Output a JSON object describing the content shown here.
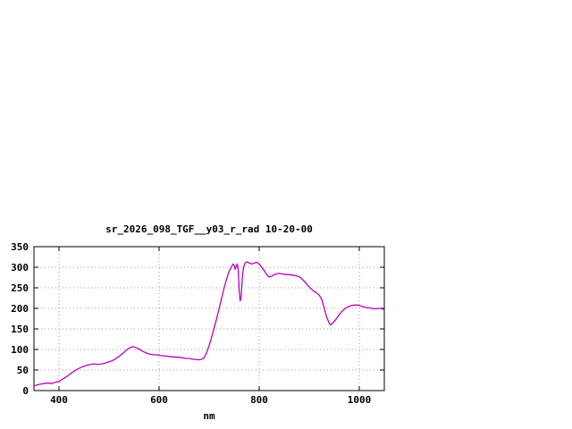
{
  "chart_data": {
    "type": "line",
    "title": "sr_2026_098_TGF__y03_r_rad 10-20-00",
    "xlabel": "nm",
    "ylabel": "",
    "xlim": [
      350,
      1050
    ],
    "ylim": [
      0,
      350
    ],
    "xticks": [
      400,
      600,
      800,
      1000
    ],
    "yticks": [
      0,
      50,
      100,
      150,
      200,
      250,
      300,
      350
    ],
    "grid": true,
    "legend": "none",
    "line_color": "#bb00bb",
    "points": [
      [
        350,
        12
      ],
      [
        355,
        13
      ],
      [
        360,
        15
      ],
      [
        365,
        16
      ],
      [
        370,
        17
      ],
      [
        375,
        18
      ],
      [
        380,
        18
      ],
      [
        385,
        17
      ],
      [
        390,
        19
      ],
      [
        395,
        21
      ],
      [
        400,
        22
      ],
      [
        405,
        26
      ],
      [
        410,
        30
      ],
      [
        415,
        34
      ],
      [
        420,
        38
      ],
      [
        425,
        43
      ],
      [
        430,
        47
      ],
      [
        435,
        51
      ],
      [
        440,
        54
      ],
      [
        445,
        57
      ],
      [
        450,
        59
      ],
      [
        455,
        61
      ],
      [
        460,
        63
      ],
      [
        465,
        64
      ],
      [
        470,
        65
      ],
      [
        475,
        64
      ],
      [
        480,
        64
      ],
      [
        485,
        65
      ],
      [
        490,
        66
      ],
      [
        495,
        68
      ],
      [
        500,
        70
      ],
      [
        505,
        72
      ],
      [
        510,
        75
      ],
      [
        515,
        79
      ],
      [
        520,
        83
      ],
      [
        525,
        88
      ],
      [
        530,
        93
      ],
      [
        535,
        99
      ],
      [
        540,
        103
      ],
      [
        545,
        106
      ],
      [
        550,
        106
      ],
      [
        555,
        104
      ],
      [
        560,
        101
      ],
      [
        565,
        97
      ],
      [
        570,
        94
      ],
      [
        575,
        91
      ],
      [
        580,
        89
      ],
      [
        585,
        88
      ],
      [
        590,
        87
      ],
      [
        595,
        87
      ],
      [
        600,
        86
      ],
      [
        605,
        85
      ],
      [
        610,
        84
      ],
      [
        615,
        84
      ],
      [
        620,
        83
      ],
      [
        625,
        82
      ],
      [
        630,
        82
      ],
      [
        635,
        81
      ],
      [
        640,
        81
      ],
      [
        645,
        80
      ],
      [
        650,
        79
      ],
      [
        655,
        78
      ],
      [
        660,
        78
      ],
      [
        665,
        77
      ],
      [
        670,
        76
      ],
      [
        675,
        75
      ],
      [
        680,
        75
      ],
      [
        685,
        76
      ],
      [
        690,
        80
      ],
      [
        695,
        92
      ],
      [
        700,
        110
      ],
      [
        705,
        130
      ],
      [
        710,
        152
      ],
      [
        715,
        175
      ],
      [
        720,
        200
      ],
      [
        725,
        225
      ],
      [
        730,
        250
      ],
      [
        735,
        272
      ],
      [
        740,
        290
      ],
      [
        745,
        302
      ],
      [
        748,
        308
      ],
      [
        750,
        305
      ],
      [
        752,
        295
      ],
      [
        754,
        300
      ],
      [
        756,
        308
      ],
      [
        758,
        295
      ],
      [
        760,
        245
      ],
      [
        762,
        218
      ],
      [
        764,
        225
      ],
      [
        766,
        270
      ],
      [
        768,
        295
      ],
      [
        770,
        305
      ],
      [
        772,
        310
      ],
      [
        774,
        312
      ],
      [
        776,
        313
      ],
      [
        778,
        312
      ],
      [
        780,
        310
      ],
      [
        785,
        308
      ],
      [
        790,
        310
      ],
      [
        795,
        312
      ],
      [
        800,
        308
      ],
      [
        805,
        300
      ],
      [
        810,
        292
      ],
      [
        815,
        282
      ],
      [
        820,
        276
      ],
      [
        825,
        278
      ],
      [
        830,
        282
      ],
      [
        835,
        284
      ],
      [
        840,
        285
      ],
      [
        845,
        284
      ],
      [
        850,
        283
      ],
      [
        855,
        282
      ],
      [
        860,
        282
      ],
      [
        865,
        281
      ],
      [
        870,
        280
      ],
      [
        875,
        279
      ],
      [
        880,
        277
      ],
      [
        885,
        272
      ],
      [
        890,
        266
      ],
      [
        895,
        259
      ],
      [
        900,
        252
      ],
      [
        905,
        246
      ],
      [
        910,
        241
      ],
      [
        915,
        237
      ],
      [
        920,
        232
      ],
      [
        925,
        222
      ],
      [
        930,
        200
      ],
      [
        935,
        178
      ],
      [
        940,
        164
      ],
      [
        942,
        160
      ],
      [
        945,
        162
      ],
      [
        950,
        168
      ],
      [
        955,
        176
      ],
      [
        960,
        185
      ],
      [
        965,
        192
      ],
      [
        970,
        198
      ],
      [
        975,
        202
      ],
      [
        980,
        205
      ],
      [
        985,
        207
      ],
      [
        990,
        208
      ],
      [
        995,
        208
      ],
      [
        1000,
        207
      ],
      [
        1005,
        205
      ],
      [
        1010,
        203
      ],
      [
        1015,
        202
      ],
      [
        1020,
        201
      ],
      [
        1025,
        200
      ],
      [
        1030,
        199
      ],
      [
        1035,
        199
      ],
      [
        1040,
        200
      ],
      [
        1045,
        199
      ],
      [
        1050,
        197
      ]
    ]
  }
}
